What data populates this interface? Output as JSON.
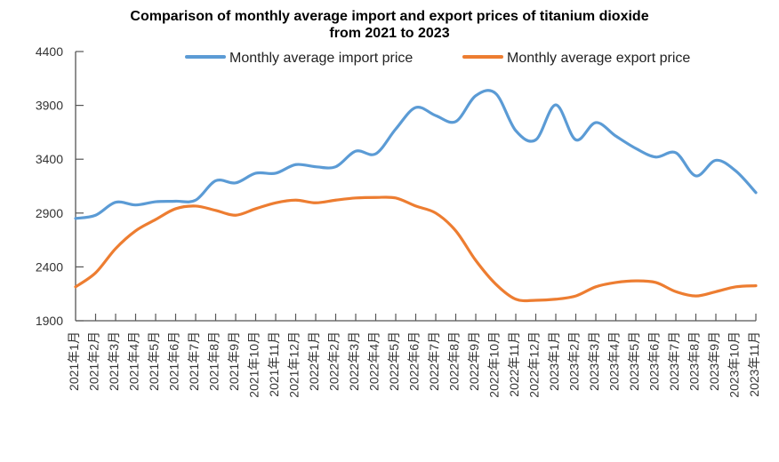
{
  "chart_data": {
    "type": "line",
    "title": "Comparison of monthly average import and export prices of titanium dioxide from 2021 to 2023",
    "title_lines": [
      "Comparison of monthly average import and export prices of titanium dioxide",
      "from 2021 to 2023"
    ],
    "xlabel": "",
    "ylabel": "",
    "ylim": [
      1900,
      4400
    ],
    "yticks": [
      1900,
      2400,
      2900,
      3400,
      3900,
      4400
    ],
    "grid": false,
    "legend_placement": "top",
    "smooth": true,
    "categories": [
      "2021年1月",
      "2021年2月",
      "2021年3月",
      "2021年4月",
      "2021年5月",
      "2021年6月",
      "2021年7月",
      "2021年8月",
      "2021年9月",
      "2021年10月",
      "2021年11月",
      "2021年12月",
      "2022年1月",
      "2022年2月",
      "2022年3月",
      "2022年4月",
      "2022年5月",
      "2022年6月",
      "2022年7月",
      "2022年8月",
      "2022年9月",
      "2022年10月",
      "2022年11月",
      "2022年12月",
      "2023年1月",
      "2023年2月",
      "2023年3月",
      "2023年4月",
      "2023年5月",
      "2023年6月",
      "2023年7月",
      "2023年8月",
      "2023年9月",
      "2023年10月",
      "2023年11月"
    ],
    "series": [
      {
        "name": "Monthly average import price",
        "color": "#5b9bd5",
        "values": [
          2850,
          2880,
          3000,
          2975,
          3005,
          3010,
          3020,
          3200,
          3180,
          3270,
          3270,
          3350,
          3330,
          3330,
          3475,
          3450,
          3680,
          3880,
          3805,
          3750,
          3990,
          4010,
          3665,
          3580,
          3905,
          3580,
          3740,
          3615,
          3500,
          3420,
          3460,
          3245,
          3390,
          3290,
          3090
        ]
      },
      {
        "name": "Monthly average export price",
        "color": "#ed7d31",
        "values": [
          2215,
          2345,
          2570,
          2735,
          2840,
          2940,
          2965,
          2925,
          2880,
          2940,
          2995,
          3020,
          2995,
          3020,
          3040,
          3045,
          3040,
          2965,
          2900,
          2735,
          2460,
          2240,
          2100,
          2090,
          2100,
          2130,
          2215,
          2255,
          2270,
          2255,
          2170,
          2130,
          2170,
          2215,
          2225
        ]
      }
    ]
  }
}
